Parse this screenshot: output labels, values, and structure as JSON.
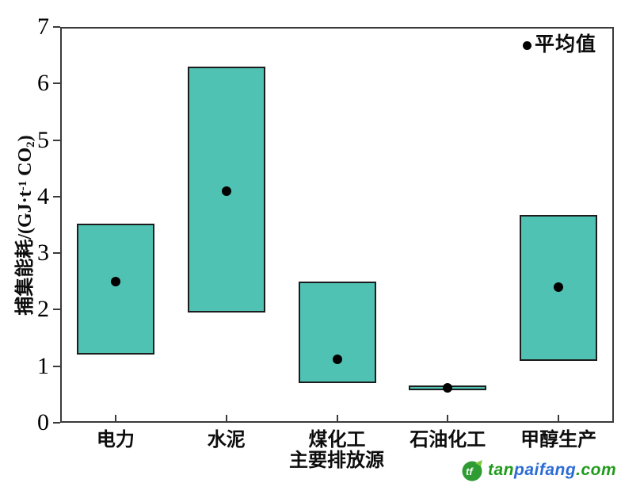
{
  "chart_data": {
    "type": "bar",
    "subtype": "floating-range-bars-with-mean-points",
    "title": "",
    "xlabel": "主要排放源",
    "ylabel": "捕集能耗/(GJ·t⁻¹ CO₂)",
    "ylabel_parts": {
      "prefix": "捕集能耗/(GJ·t",
      "sup": "-1",
      "mid": " CO",
      "sub": "2",
      "suffix": ")"
    },
    "categories": [
      "电力",
      "水泥",
      "煤化工",
      "石油化工",
      "甲醇生产"
    ],
    "range": {
      "low": [
        1.2,
        1.95,
        0.7,
        0.58,
        1.1
      ],
      "high": [
        3.52,
        6.3,
        2.5,
        0.66,
        3.68
      ]
    },
    "mean": {
      "label": "平均值",
      "values": [
        2.5,
        4.1,
        1.12,
        0.62,
        2.4
      ]
    },
    "ylim": [
      0,
      7
    ],
    "yticks": [
      0,
      1,
      2,
      3,
      4,
      5,
      6,
      7
    ],
    "grid": false,
    "legend": {
      "label": "平均值",
      "position": "top-right-inside"
    },
    "colors": {
      "bar_fill": "#4FC2B4",
      "bar_border": "#1c1c1c",
      "axis": "#3a3a3a",
      "mean_dot": "#000000"
    }
  },
  "watermark": {
    "logo": "tf",
    "tan": "tan",
    "paifang": "paifang",
    "com": ".com",
    "colors": {
      "green": "#1F9A1B",
      "blue": "#2B6BD6",
      "logo_bg": "#2E9B33",
      "leaf": "#7DC83C"
    }
  }
}
